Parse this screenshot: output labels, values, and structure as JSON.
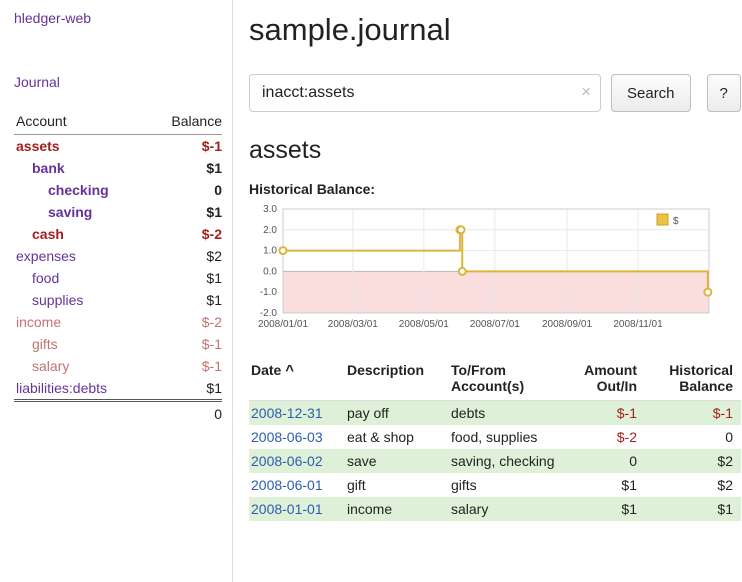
{
  "app": {
    "title": "hledger-web",
    "journal_label": "Journal"
  },
  "sidebar": {
    "header": {
      "account": "Account",
      "balance": "Balance"
    },
    "accounts": [
      {
        "name": "assets",
        "indent": 0,
        "balance": "$-1",
        "bold": true,
        "negative": true
      },
      {
        "name": "bank",
        "indent": 1,
        "balance": "$1",
        "bold": true,
        "negative": false
      },
      {
        "name": "checking",
        "indent": 2,
        "balance": "0",
        "bold": true,
        "negative": false
      },
      {
        "name": "saving",
        "indent": 2,
        "balance": "$1",
        "bold": true,
        "negative": false
      },
      {
        "name": "cash",
        "indent": 1,
        "balance": "$-2",
        "bold": true,
        "negative": true
      },
      {
        "name": "expenses",
        "indent": 0,
        "balance": "$2",
        "bold": false,
        "negative": false
      },
      {
        "name": "food",
        "indent": 1,
        "balance": "$1",
        "bold": false,
        "negative": false
      },
      {
        "name": "supplies",
        "indent": 1,
        "balance": "$1",
        "bold": false,
        "negative": false
      },
      {
        "name": "income",
        "indent": 0,
        "balance": "$-2",
        "bold": false,
        "negative": true
      },
      {
        "name": "gifts",
        "indent": 1,
        "balance": "$-1",
        "bold": false,
        "negative": true
      },
      {
        "name": "salary",
        "indent": 1,
        "balance": "$-1",
        "bold": false,
        "negative": true
      },
      {
        "name": "liabilities:debts",
        "indent": 0,
        "balance": "$1",
        "bold": false,
        "negative": false
      }
    ],
    "total": "0"
  },
  "header": {
    "title": "sample.journal"
  },
  "search": {
    "value": "inacct:assets",
    "clear_icon": "×",
    "button_label": "Search",
    "help_label": "?"
  },
  "account_page": {
    "title": "assets",
    "chart_label": "Historical Balance:"
  },
  "chart_data": {
    "type": "line",
    "step": true,
    "title": "Historical Balance",
    "series": [
      {
        "name": "$",
        "points": [
          [
            "2008-01-01",
            1
          ],
          [
            "2008-06-01",
            2
          ],
          [
            "2008-06-02",
            2
          ],
          [
            "2008-06-03",
            0
          ],
          [
            "2008-12-31",
            -1
          ]
        ]
      }
    ],
    "x_range": [
      "2008-01-01",
      "2009-01-01"
    ],
    "x_ticks": [
      "2008/01/01",
      "2008/03/01",
      "2008/05/01",
      "2008/07/01",
      "2008/09/01",
      "2008/11/01"
    ],
    "y_ticks": [
      3,
      2,
      1,
      0,
      -1,
      -2
    ],
    "ylim": [
      -2,
      3
    ],
    "grid": true,
    "legend_position": "top-right",
    "line_color": "#dcb53f",
    "legend_fill": "#edc240",
    "marker_fill": "#ffffff",
    "negative_region_color": "#fadddd"
  },
  "register": {
    "columns": {
      "date": "Date",
      "description": "Description",
      "accounts": "To/From Account(s)",
      "amount": "Amount Out/In",
      "balance": "Historical Balance"
    },
    "sort_indicator": "^",
    "rows": [
      {
        "date": "2008-12-31",
        "description": "pay off",
        "accounts": "debts",
        "amount": "$-1",
        "balance": "$-1",
        "amount_negative": true,
        "balance_negative": true
      },
      {
        "date": "2008-06-03",
        "description": "eat & shop",
        "accounts": "food, supplies",
        "amount": "$-2",
        "balance": "0",
        "amount_negative": true,
        "balance_negative": false
      },
      {
        "date": "2008-06-02",
        "description": "save",
        "accounts": "saving, checking",
        "amount": "0",
        "balance": "$2",
        "amount_negative": false,
        "balance_negative": false
      },
      {
        "date": "2008-06-01",
        "description": "gift",
        "accounts": "gifts",
        "amount": "$1",
        "balance": "$2",
        "amount_negative": false,
        "balance_negative": false
      },
      {
        "date": "2008-01-01",
        "description": "income",
        "accounts": "salary",
        "amount": "$1",
        "balance": "$1",
        "amount_negative": false,
        "balance_negative": false
      }
    ]
  },
  "colors": {
    "link_purple": "#663399",
    "link_blue": "#2a5db0",
    "negative_strong": "#a3201d",
    "negative_light": "#c07470",
    "positive_row_bg": "#dff0d8"
  }
}
